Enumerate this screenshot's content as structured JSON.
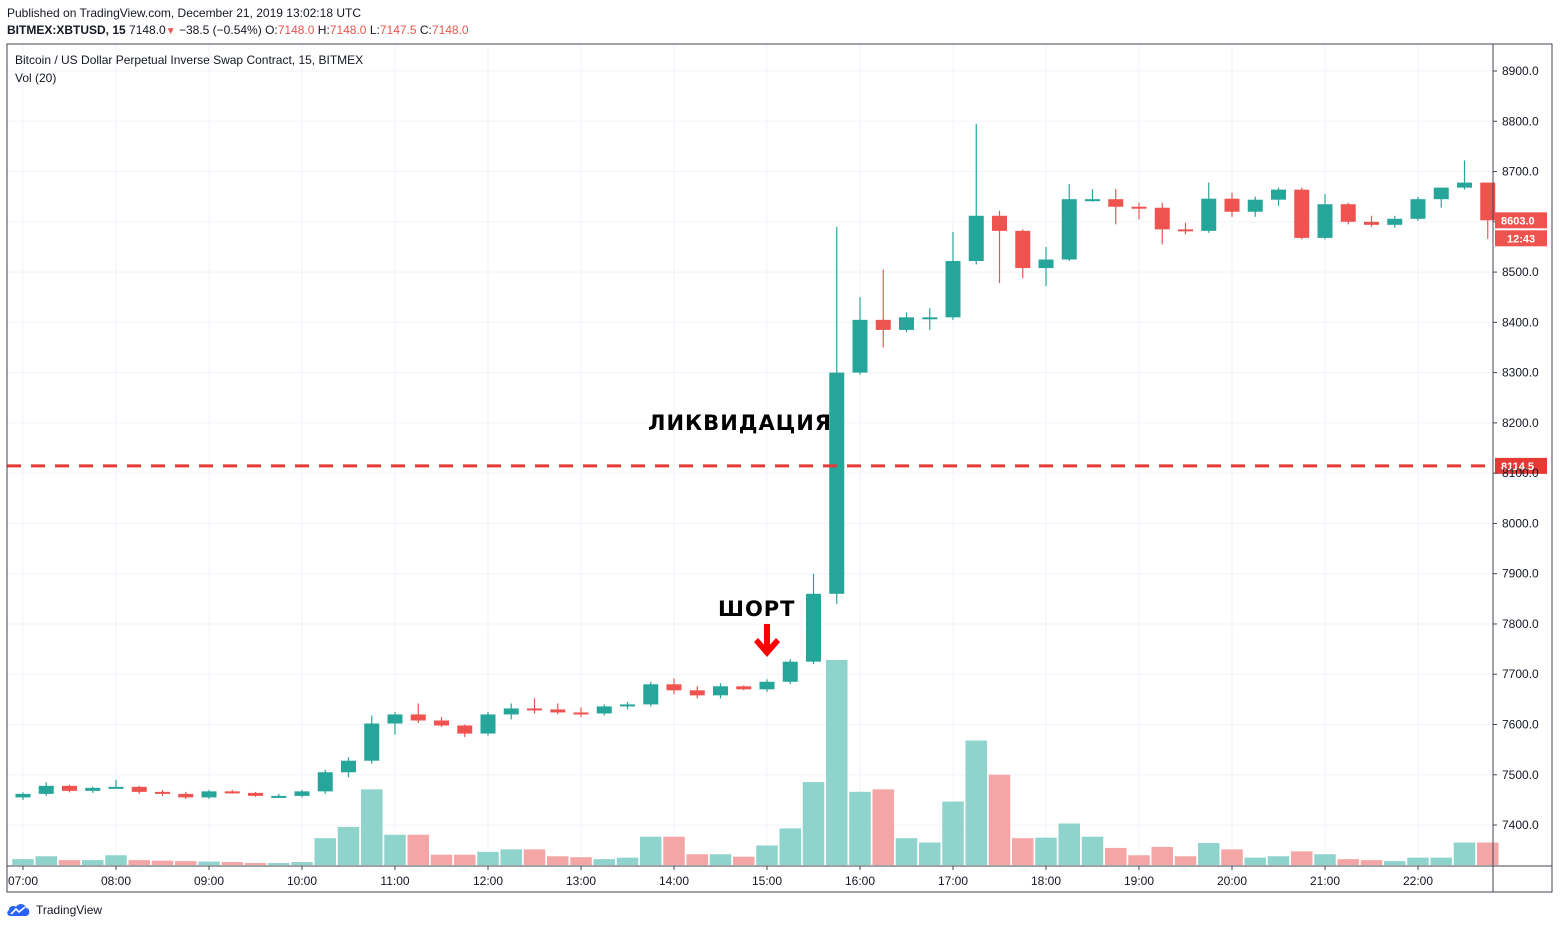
{
  "header": {
    "published": "Published on TradingView.com, December 21, 2019 13:02:18 UTC",
    "symbol": "BITMEX:XBTUSD, 15",
    "last": "7148.0",
    "change": "−38.5 (−0.54%)",
    "o_label": "O:",
    "o_val": "7148.0",
    "h_label": "H:",
    "h_val": "7148.0",
    "l_label": "L:",
    "l_val": "7147.5",
    "c_label": "C:",
    "c_val": "7148.0"
  },
  "footer": {
    "brand": "TradingView"
  },
  "colors": {
    "up": "#26a69a",
    "down": "#ef5350",
    "vol_up": "#8fd3cd",
    "vol_down": "#f4a6a6",
    "grid": "#f0f3fa"
  },
  "chart_data": {
    "type": "candlestick",
    "title": "Bitcoin / US Dollar Perpetual Inverse Swap Contract, 15, BITMEX",
    "volume_label": "Vol (20)",
    "ylim": [
      7320,
      8950
    ],
    "y_ticks": [
      "8900.0",
      "8800.0",
      "8700.0",
      "8600.0",
      "8500.0",
      "8400.0",
      "8300.0",
      "8200.0",
      "8100.0",
      "8000.0",
      "7900.0",
      "7800.0",
      "7700.0",
      "7600.0",
      "7500.0",
      "7400.0"
    ],
    "x_ticks": [
      "07:00",
      "08:00",
      "09:00",
      "10:00",
      "11:00",
      "12:00",
      "13:00",
      "14:00",
      "15:00",
      "16:00",
      "17:00",
      "18:00",
      "19:00",
      "20:00",
      "21:00",
      "22:00"
    ],
    "price_label": "8603.0",
    "countdown": "12:43",
    "level_label": "8114.5",
    "level": 8114.5,
    "annotations": [
      {
        "text": "ЛИКВИДАЦИЯ",
        "price": 8200
      },
      {
        "text": "ШОРТ",
        "price": 7830
      }
    ],
    "short_bar_index": 32,
    "candles": [
      [
        7455,
        7465,
        7450,
        7462,
        1.2
      ],
      [
        7462,
        7485,
        7458,
        7478,
        1.8
      ],
      [
        7478,
        7480,
        7465,
        7468,
        1.0
      ],
      [
        7468,
        7476,
        7464,
        7474,
        1.0
      ],
      [
        7474,
        7490,
        7472,
        7476,
        2.0
      ],
      [
        7476,
        7478,
        7462,
        7466,
        1.0
      ],
      [
        7466,
        7470,
        7458,
        7462,
        0.9
      ],
      [
        7462,
        7466,
        7452,
        7455,
        0.8
      ],
      [
        7455,
        7470,
        7452,
        7467,
        0.7
      ],
      [
        7467,
        7470,
        7462,
        7464,
        0.6
      ],
      [
        7464,
        7466,
        7456,
        7458,
        0.4
      ],
      [
        7458,
        7462,
        7454,
        7458,
        0.4
      ],
      [
        7458,
        7470,
        7455,
        7467,
        0.6
      ],
      [
        7467,
        7510,
        7462,
        7505,
        5.5
      ],
      [
        7505,
        7535,
        7495,
        7528,
        7.8
      ],
      [
        7528,
        7618,
        7522,
        7602,
        15.5
      ],
      [
        7602,
        7625,
        7580,
        7620,
        6.2
      ],
      [
        7620,
        7642,
        7603,
        7608,
        6.2
      ],
      [
        7608,
        7615,
        7595,
        7598,
        2.1
      ],
      [
        7598,
        7600,
        7575,
        7582,
        2.1
      ],
      [
        7582,
        7625,
        7578,
        7620,
        2.7
      ],
      [
        7620,
        7642,
        7610,
        7632,
        3.2
      ],
      [
        7632,
        7652,
        7622,
        7630,
        3.2
      ],
      [
        7630,
        7642,
        7620,
        7624,
        1.8
      ],
      [
        7624,
        7634,
        7615,
        7622,
        1.6
      ],
      [
        7622,
        7640,
        7618,
        7636,
        1.2
      ],
      [
        7636,
        7645,
        7630,
        7640,
        1.5
      ],
      [
        7640,
        7685,
        7636,
        7680,
        5.8
      ],
      [
        7680,
        7692,
        7660,
        7668,
        5.8
      ],
      [
        7668,
        7676,
        7652,
        7658,
        2.2
      ],
      [
        7658,
        7682,
        7652,
        7676,
        2.2
      ],
      [
        7676,
        7678,
        7668,
        7670,
        1.7
      ],
      [
        7670,
        7690,
        7665,
        7685,
        4.0
      ],
      [
        7685,
        7730,
        7680,
        7725,
        7.5
      ],
      [
        7725,
        7900,
        7720,
        7860,
        17.0
      ],
      [
        7860,
        8590,
        7840,
        8300,
        42.0
      ],
      [
        8300,
        8450,
        8296,
        8405,
        15.0
      ],
      [
        8405,
        8505,
        8350,
        8385,
        15.5
      ],
      [
        8385,
        8420,
        8380,
        8410,
        5.5
      ],
      [
        8410,
        8428,
        8385,
        8410,
        4.6
      ],
      [
        8410,
        8580,
        8405,
        8522,
        13.0
      ],
      [
        8522,
        8795,
        8515,
        8612,
        25.5
      ],
      [
        8612,
        8622,
        8478,
        8582,
        18.5
      ],
      [
        8582,
        8585,
        8488,
        8508,
        5.5
      ],
      [
        8508,
        8550,
        8472,
        8525,
        5.6
      ],
      [
        8525,
        8675,
        8522,
        8645,
        8.5
      ],
      [
        8645,
        8665,
        8640,
        8645,
        5.8
      ],
      [
        8645,
        8665,
        8595,
        8630,
        3.5
      ],
      [
        8630,
        8638,
        8605,
        8628,
        2.0
      ],
      [
        8628,
        8638,
        8555,
        8585,
        3.7
      ],
      [
        8585,
        8598,
        8575,
        8582,
        1.8
      ],
      [
        8582,
        8678,
        8578,
        8646,
        4.5
      ],
      [
        8646,
        8658,
        8610,
        8620,
        3.2
      ],
      [
        8620,
        8650,
        8610,
        8644,
        1.5
      ],
      [
        8644,
        8668,
        8632,
        8664,
        1.8
      ],
      [
        8664,
        8668,
        8565,
        8568,
        2.8
      ],
      [
        8568,
        8655,
        8565,
        8635,
        2.2
      ],
      [
        8635,
        8638,
        8595,
        8600,
        1.2
      ],
      [
        8600,
        8612,
        8590,
        8594,
        1.0
      ],
      [
        8594,
        8612,
        8588,
        8606,
        0.8
      ],
      [
        8606,
        8650,
        8602,
        8645,
        1.5
      ],
      [
        8645,
        8668,
        8628,
        8668,
        1.5
      ],
      [
        8668,
        8722,
        8664,
        8678,
        4.6
      ],
      [
        8678,
        8678,
        8566,
        8603,
        4.6
      ]
    ]
  }
}
